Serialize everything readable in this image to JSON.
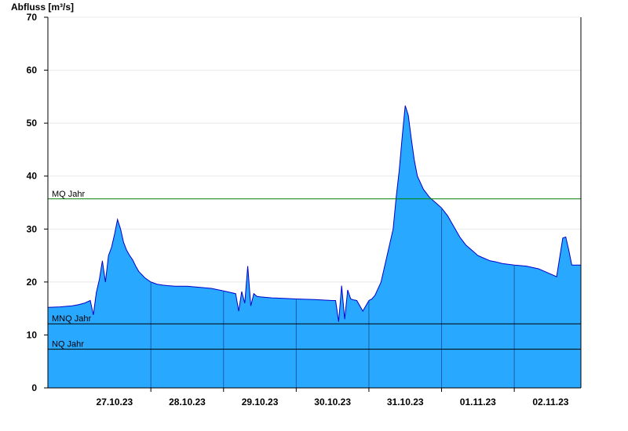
{
  "chart_data": {
    "type": "area",
    "ylabel": "Abfluss [m³/s]",
    "ylim": [
      0,
      70
    ],
    "yticks": [
      0,
      10,
      20,
      30,
      40,
      50,
      60,
      70
    ],
    "xlim": [
      "2023-10-26 14:00",
      "2023-11-02 22:00"
    ],
    "xticks": [
      {
        "label": "27.10.23",
        "at": "2023-10-27 12:00"
      },
      {
        "label": "28.10.23",
        "at": "2023-10-28 12:00"
      },
      {
        "label": "29.10.23",
        "at": "2023-10-29 12:00"
      },
      {
        "label": "30.10.23",
        "at": "2023-10-30 12:00"
      },
      {
        "label": "31.10.23",
        "at": "2023-10-31 12:00"
      },
      {
        "label": "01.11.23",
        "at": "2023-11-01 12:00"
      },
      {
        "label": "02.11.23",
        "at": "2023-11-02 12:00"
      }
    ],
    "day_lines": [
      "2023-10-28 00:00",
      "2023-10-29 00:00",
      "2023-10-30 00:00",
      "2023-10-31 00:00",
      "2023-11-01 00:00",
      "2023-11-02 00:00"
    ],
    "grid": true,
    "colors": {
      "fill": "#29a8ff",
      "line": "#0000cc",
      "mq": "#008000",
      "mnq": "#000000",
      "nq": "#000000",
      "grid": "#e8e8e8"
    },
    "reference_lines": [
      {
        "label": "MQ Jahr",
        "value": 35.7
      },
      {
        "label": "MNQ Jahr",
        "value": 12.1
      },
      {
        "label": "NQ Jahr",
        "value": 7.3
      }
    ],
    "series": [
      {
        "x": [
          "2023-10-26 14:00",
          "2023-10-26 18:00",
          "2023-10-26 22:00",
          "2023-10-27 00:00",
          "2023-10-27 02:00",
          "2023-10-27 04:00",
          "2023-10-27 05:00",
          "2023-10-27 06:00",
          "2023-10-27 07:00",
          "2023-10-27 08:00",
          "2023-10-27 09:00",
          "2023-10-27 10:00",
          "2023-10-27 11:00",
          "2023-10-27 12:00",
          "2023-10-27 13:00",
          "2023-10-27 14:00",
          "2023-10-27 15:00",
          "2023-10-27 16:00",
          "2023-10-27 17:00",
          "2023-10-27 18:00",
          "2023-10-27 19:00",
          "2023-10-27 20:00",
          "2023-10-27 22:00",
          "2023-10-28 00:00",
          "2023-10-28 02:00",
          "2023-10-28 04:00",
          "2023-10-28 06:00",
          "2023-10-28 08:00",
          "2023-10-28 12:00",
          "2023-10-28 16:00",
          "2023-10-28 20:00",
          "2023-10-29 00:00",
          "2023-10-29 04:00",
          "2023-10-29 05:00",
          "2023-10-29 06:00",
          "2023-10-29 07:00",
          "2023-10-29 08:00",
          "2023-10-29 09:00",
          "2023-10-29 10:00",
          "2023-10-29 11:00",
          "2023-10-29 12:00",
          "2023-10-29 14:00",
          "2023-10-29 16:00",
          "2023-10-29 20:00",
          "2023-10-30 00:00",
          "2023-10-30 06:00",
          "2023-10-30 12:00",
          "2023-10-30 13:00",
          "2023-10-30 14:00",
          "2023-10-30 15:00",
          "2023-10-30 16:00",
          "2023-10-30 17:00",
          "2023-10-30 18:00",
          "2023-10-30 19:00",
          "2023-10-30 20:00",
          "2023-10-30 22:00",
          "2023-10-31 00:00",
          "2023-10-31 01:00",
          "2023-10-31 02:00",
          "2023-10-31 04:00",
          "2023-10-31 06:00",
          "2023-10-31 08:00",
          "2023-10-31 09:00",
          "2023-10-31 10:00",
          "2023-10-31 11:00",
          "2023-10-31 12:00",
          "2023-10-31 13:00",
          "2023-10-31 14:00",
          "2023-10-31 15:00",
          "2023-10-31 16:00",
          "2023-10-31 18:00",
          "2023-10-31 20:00",
          "2023-10-31 22:00",
          "2023-11-01 00:00",
          "2023-11-01 02:00",
          "2023-11-01 04:00",
          "2023-11-01 06:00",
          "2023-11-01 08:00",
          "2023-11-01 10:00",
          "2023-11-01 12:00",
          "2023-11-01 14:00",
          "2023-11-01 16:00",
          "2023-11-01 18:00",
          "2023-11-01 20:00",
          "2023-11-02 00:00",
          "2023-11-02 04:00",
          "2023-11-02 08:00",
          "2023-11-02 10:00",
          "2023-11-02 12:00",
          "2023-11-02 14:00",
          "2023-11-02 16:00",
          "2023-11-02 17:00",
          "2023-11-02 18:00",
          "2023-11-02 19:00",
          "2023-11-02 20:00",
          "2023-11-02 22:00"
        ],
        "y": [
          15.2,
          15.3,
          15.5,
          15.7,
          16.0,
          16.5,
          13.8,
          18.0,
          20.5,
          24.0,
          20.0,
          25.0,
          26.5,
          29.0,
          31.8,
          30.0,
          27.5,
          26.0,
          25.0,
          24.2,
          23.0,
          22.0,
          20.8,
          20.0,
          19.6,
          19.4,
          19.3,
          19.2,
          19.2,
          19.0,
          18.8,
          18.3,
          17.8,
          14.5,
          18.2,
          16.0,
          23.0,
          15.5,
          17.8,
          17.3,
          17.2,
          17.1,
          17.0,
          16.9,
          16.8,
          16.7,
          16.5,
          16.5,
          12.5,
          19.3,
          13.0,
          18.5,
          16.8,
          16.6,
          16.5,
          14.5,
          16.5,
          16.8,
          17.5,
          20.0,
          25.0,
          30.0,
          36.0,
          41.0,
          47.5,
          53.3,
          51.5,
          47.0,
          43.0,
          40.0,
          37.5,
          36.0,
          35.0,
          34.0,
          32.5,
          30.5,
          28.5,
          27.0,
          26.0,
          25.0,
          24.5,
          24.0,
          23.8,
          23.5,
          23.2,
          23.0,
          22.5,
          22.0,
          21.5,
          21.0,
          28.3,
          28.5,
          26.0,
          23.2,
          23.2,
          23.2
        ]
      }
    ]
  }
}
